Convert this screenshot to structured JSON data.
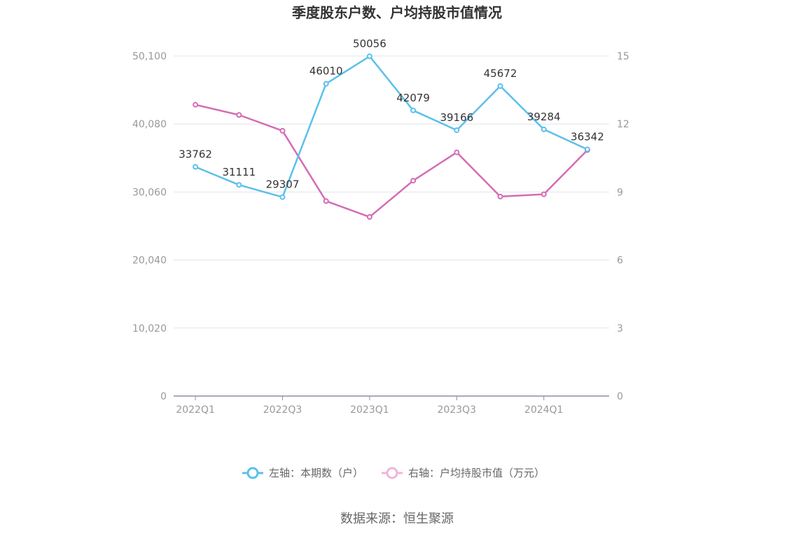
{
  "chart_data": {
    "type": "line",
    "title": "季度股东户数、户均持股市值情况",
    "categories": [
      "2022Q1",
      "2022Q2",
      "2022Q3",
      "2022Q4",
      "2023Q1",
      "2023Q2",
      "2023Q3",
      "2023Q4",
      "2024Q1",
      "2024Q2"
    ],
    "x_tick_labels": [
      "2022Q1",
      "2022Q3",
      "2023Q1",
      "2023Q3",
      "2024Q1"
    ],
    "left_axis": {
      "ylim": [
        0,
        50100
      ],
      "ticks": [
        "0",
        "10,020",
        "20,040",
        "30,060",
        "40,080",
        "50,100"
      ]
    },
    "right_axis": {
      "ylim": [
        0,
        15
      ],
      "ticks": [
        "0",
        "3",
        "6",
        "9",
        "12",
        "15"
      ]
    },
    "series": [
      {
        "name": "左轴：本期数（户）",
        "axis": "left",
        "color": "#5bc0eb",
        "values": [
          33762,
          31111,
          29307,
          46010,
          50056,
          42079,
          39166,
          45672,
          39284,
          36342
        ],
        "labels": [
          "33762",
          "31111",
          "29307",
          "46010",
          "50056",
          "42079",
          "39166",
          "45672",
          "39284",
          "36342"
        ]
      },
      {
        "name": "右轴：户均持股市值（万元）",
        "axis": "right",
        "color": "#d46cb4",
        "legend_color": "#eeb6d8",
        "values": [
          12.85,
          12.4,
          11.7,
          8.6,
          7.9,
          9.5,
          10.75,
          8.8,
          8.9,
          10.85
        ]
      }
    ],
    "grid": true,
    "legend_position": "bottom"
  },
  "source": "数据来源：恒生聚源"
}
